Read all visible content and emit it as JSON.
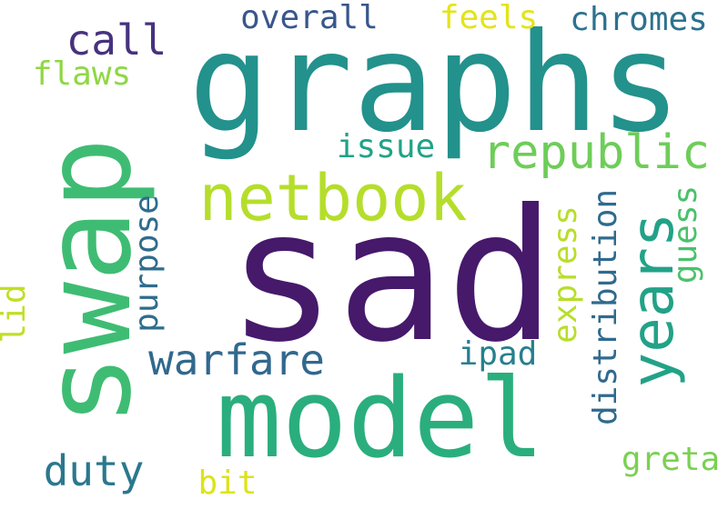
{
  "words": {
    "sad": {
      "text": "sad",
      "color": "#46196b"
    },
    "graphs": {
      "text": "graphs",
      "color": "#23918c"
    },
    "swap": {
      "text": "swap",
      "color": "#3fbc73"
    },
    "model": {
      "text": "model",
      "color": "#2aae7d"
    },
    "netbook": {
      "text": "netbook",
      "color": "#b5de2b"
    },
    "years": {
      "text": "years",
      "color": "#22a287"
    },
    "republic": {
      "text": "republic",
      "color": "#6ecd59"
    },
    "warfare": {
      "text": "warfare",
      "color": "#31688e"
    },
    "call": {
      "text": "call",
      "color": "#46327e"
    },
    "duty": {
      "text": "duty",
      "color": "#2a788e"
    },
    "overall": {
      "text": "overall",
      "color": "#39568c"
    },
    "chromes": {
      "text": "chromes",
      "color": "#2c728e"
    },
    "feels": {
      "text": "feels",
      "color": "#e3e418"
    },
    "issue": {
      "text": "issue",
      "color": "#20a386"
    },
    "flaws": {
      "text": "flaws",
      "color": "#8fd744"
    },
    "greta": {
      "text": "greta",
      "color": "#7ad151"
    },
    "ipad": {
      "text": "ipad",
      "color": "#277f8e"
    },
    "bit": {
      "text": "bit",
      "color": "#dde318"
    },
    "purpose": {
      "text": "purpose",
      "color": "#2f6c8e"
    },
    "express": {
      "text": "express",
      "color": "#b8de29"
    },
    "distribution": {
      "text": "distribution",
      "color": "#306a8e"
    },
    "guess": {
      "text": "guess",
      "color": "#4ac16d"
    },
    "lid": {
      "text": "lid",
      "color": "#c0df25"
    }
  }
}
